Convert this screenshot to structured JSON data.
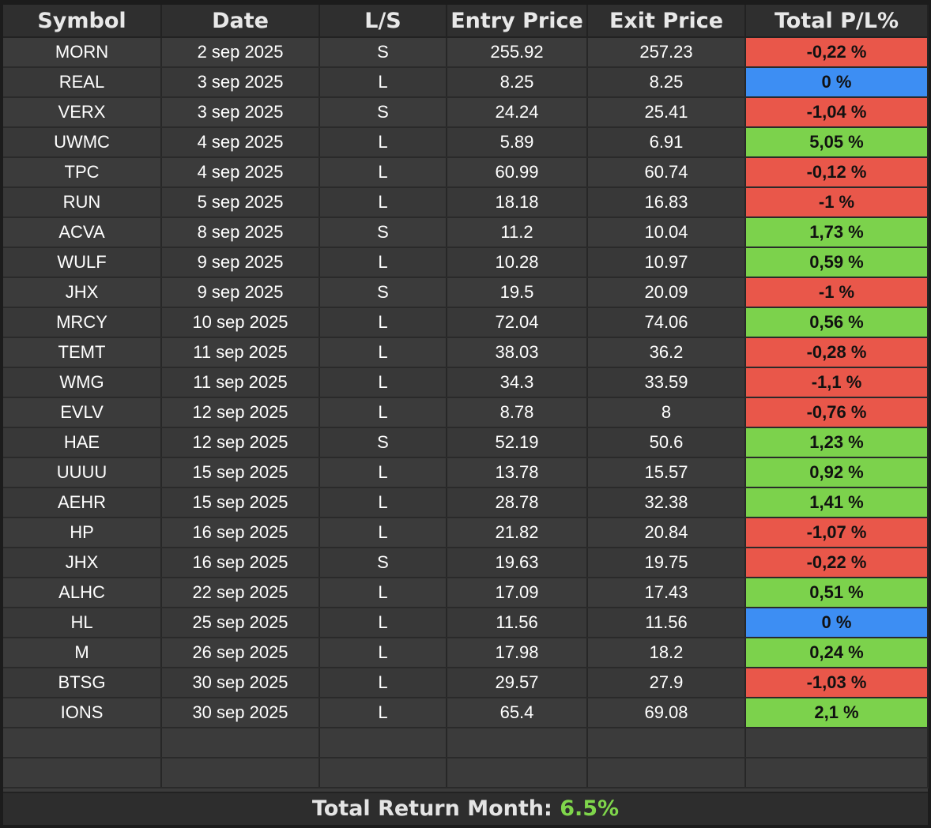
{
  "columns": [
    "Symbol",
    "Date",
    "L/S",
    "Entry Price",
    "Exit Price",
    "Total P/L%"
  ],
  "colors": {
    "loss": "#e9574a",
    "gain": "#7cd24c",
    "flat": "#3d8ef3",
    "total_value": "#7fd64b"
  },
  "rows": [
    {
      "symbol": "MORN",
      "date": "2 sep 2025",
      "side": "S",
      "entry": "255.92",
      "exit": "257.23",
      "pl": "-0,22 %",
      "status": "loss"
    },
    {
      "symbol": "REAL",
      "date": "3 sep 2025",
      "side": "L",
      "entry": "8.25",
      "exit": "8.25",
      "pl": "0 %",
      "status": "flat"
    },
    {
      "symbol": "VERX",
      "date": "3 sep 2025",
      "side": "S",
      "entry": "24.24",
      "exit": "25.41",
      "pl": "-1,04 %",
      "status": "loss"
    },
    {
      "symbol": "UWMC",
      "date": "4 sep 2025",
      "side": "L",
      "entry": "5.89",
      "exit": "6.91",
      "pl": "5,05 %",
      "status": "gain"
    },
    {
      "symbol": "TPC",
      "date": "4 sep 2025",
      "side": "L",
      "entry": "60.99",
      "exit": "60.74",
      "pl": "-0,12 %",
      "status": "loss"
    },
    {
      "symbol": "RUN",
      "date": "5 sep 2025",
      "side": "L",
      "entry": "18.18",
      "exit": "16.83",
      "pl": "-1 %",
      "status": "loss"
    },
    {
      "symbol": "ACVA",
      "date": "8 sep 2025",
      "side": "S",
      "entry": "11.2",
      "exit": "10.04",
      "pl": "1,73 %",
      "status": "gain"
    },
    {
      "symbol": "WULF",
      "date": "9 sep 2025",
      "side": "L",
      "entry": "10.28",
      "exit": "10.97",
      "pl": "0,59 %",
      "status": "gain"
    },
    {
      "symbol": "JHX",
      "date": "9 sep 2025",
      "side": "S",
      "entry": "19.5",
      "exit": "20.09",
      "pl": "-1 %",
      "status": "loss"
    },
    {
      "symbol": "MRCY",
      "date": "10 sep 2025",
      "side": "L",
      "entry": "72.04",
      "exit": "74.06",
      "pl": "0,56 %",
      "status": "gain"
    },
    {
      "symbol": "TEMT",
      "date": "11 sep 2025",
      "side": "L",
      "entry": "38.03",
      "exit": "36.2",
      "pl": "-0,28 %",
      "status": "loss"
    },
    {
      "symbol": "WMG",
      "date": "11 sep 2025",
      "side": "L",
      "entry": "34.3",
      "exit": "33.59",
      "pl": "-1,1 %",
      "status": "loss"
    },
    {
      "symbol": "EVLV",
      "date": "12 sep 2025",
      "side": "L",
      "entry": "8.78",
      "exit": "8",
      "pl": "-0,76 %",
      "status": "loss"
    },
    {
      "symbol": "HAE",
      "date": "12 sep 2025",
      "side": "S",
      "entry": "52.19",
      "exit": "50.6",
      "pl": "1,23 %",
      "status": "gain"
    },
    {
      "symbol": "UUUU",
      "date": "15 sep 2025",
      "side": "L",
      "entry": "13.78",
      "exit": "15.57",
      "pl": "0,92 %",
      "status": "gain"
    },
    {
      "symbol": "AEHR",
      "date": "15 sep 2025",
      "side": "L",
      "entry": "28.78",
      "exit": "32.38",
      "pl": "1,41 %",
      "status": "gain"
    },
    {
      "symbol": "HP",
      "date": "16 sep 2025",
      "side": "L",
      "entry": "21.82",
      "exit": "20.84",
      "pl": "-1,07 %",
      "status": "loss"
    },
    {
      "symbol": "JHX",
      "date": "16 sep 2025",
      "side": "S",
      "entry": "19.63",
      "exit": "19.75",
      "pl": "-0,22 %",
      "status": "loss"
    },
    {
      "symbol": "ALHC",
      "date": "22 sep 2025",
      "side": "L",
      "entry": "17.09",
      "exit": "17.43",
      "pl": "0,51 %",
      "status": "gain"
    },
    {
      "symbol": "HL",
      "date": "25 sep 2025",
      "side": "L",
      "entry": "11.56",
      "exit": "11.56",
      "pl": "0 %",
      "status": "flat"
    },
    {
      "symbol": "M",
      "date": "26 sep 2025",
      "side": "L",
      "entry": "17.98",
      "exit": "18.2",
      "pl": "0,24 %",
      "status": "gain"
    },
    {
      "symbol": "BTSG",
      "date": "30 sep 2025",
      "side": "L",
      "entry": "29.57",
      "exit": "27.9",
      "pl": "-1,03 %",
      "status": "loss"
    },
    {
      "symbol": "IONS",
      "date": "30 sep 2025",
      "side": "L",
      "entry": "65.4",
      "exit": "69.08",
      "pl": "2,1 %",
      "status": "gain"
    }
  ],
  "footer": {
    "label": "Total Return Month: ",
    "value": "6.5%"
  }
}
